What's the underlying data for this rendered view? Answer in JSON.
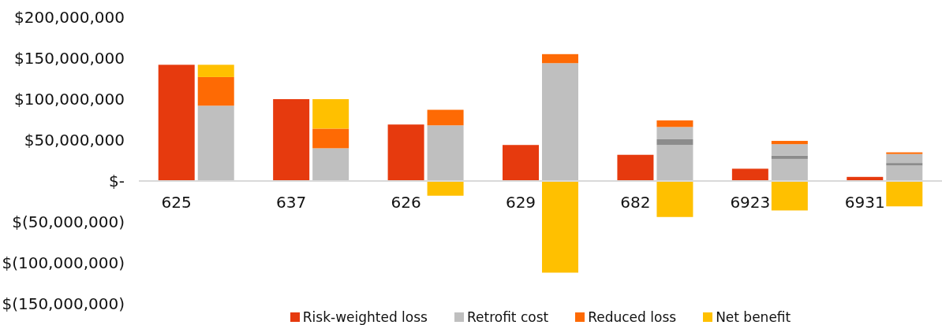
{
  "chart_data": {
    "type": "bar",
    "legend": "bottom",
    "categories": [
      "625",
      "637",
      "626",
      "629",
      "682",
      "6923",
      "6931"
    ],
    "series": [
      {
        "name": "Risk-weighted loss",
        "color": "#e63a0e",
        "values": [
          142000000,
          100000000,
          69000000,
          44000000,
          32000000,
          15000000,
          5000000
        ]
      },
      {
        "name": "Retrofit cost",
        "color": "#bfbfbf",
        "base": [
          0,
          0,
          0,
          0,
          0,
          0,
          0
        ],
        "values": [
          92000000,
          40000000,
          68000000,
          144000000,
          44000000,
          27000000,
          19000000
        ]
      },
      {
        "color": "#8c8c8c",
        "base": [
          null,
          null,
          null,
          null,
          44000000,
          27000000,
          19000000
        ],
        "values": [
          null,
          null,
          null,
          null,
          7000000,
          4000000,
          3000000
        ]
      },
      {
        "color": "#bfbfbf",
        "base": [
          null,
          null,
          null,
          null,
          51000000,
          31000000,
          22000000
        ],
        "values": [
          null,
          null,
          null,
          null,
          15000000,
          14000000,
          11000000
        ]
      },
      {
        "name": "Reduced loss",
        "color": "#fe6a04",
        "base": [
          92000000,
          40000000,
          68000000,
          144000000,
          66000000,
          45000000,
          33000000
        ],
        "values": [
          35000000,
          24000000,
          19000000,
          11000000,
          8000000,
          4000000,
          2000000
        ]
      },
      {
        "name": "Net benefit",
        "color": "#ffc000",
        "base": [
          127000000,
          64000000,
          0,
          0,
          0,
          0,
          0
        ],
        "values": [
          15000000,
          36000000,
          -18000000,
          -112000000,
          -44000000,
          -36000000,
          -31000000
        ]
      }
    ],
    "ylim": [
      -150000000,
      200000000
    ],
    "yticks": [
      {
        "value": 200000000,
        "label": "$200,000,000"
      },
      {
        "value": 150000000,
        "label": "$150,000,000"
      },
      {
        "value": 100000000,
        "label": "$100,000,000"
      },
      {
        "value": 50000000,
        "label": "$50,000,000"
      },
      {
        "value": 0,
        "label": "$-"
      },
      {
        "value": -50000000,
        "label": "$(50,000,000)"
      },
      {
        "value": -100000000,
        "label": "$(100,000,000)"
      },
      {
        "value": -150000000,
        "label": "$(150,000,000)"
      }
    ]
  }
}
